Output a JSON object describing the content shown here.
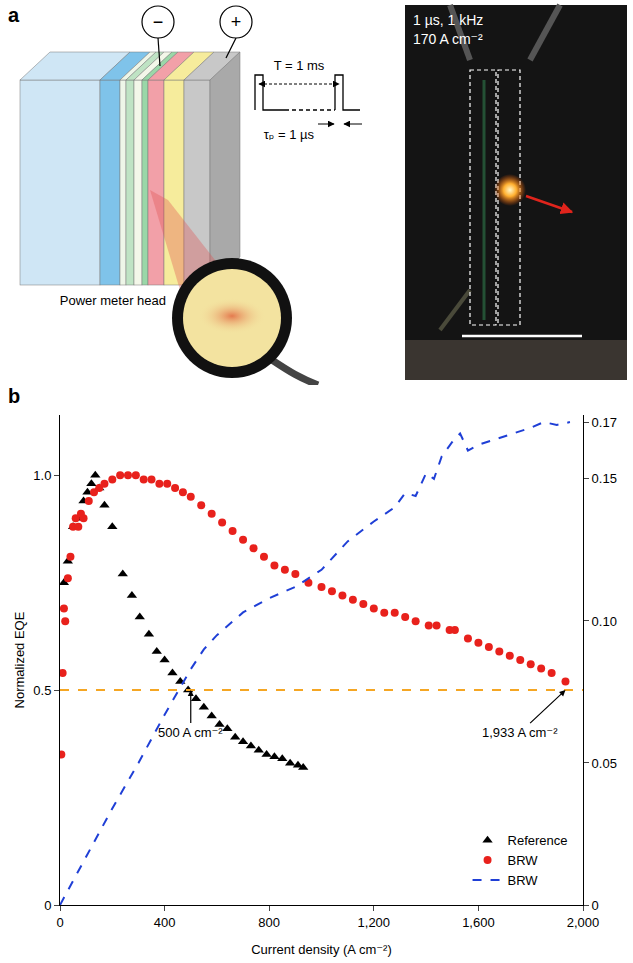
{
  "panel_a": {
    "label": "a",
    "electrodes": [
      "−",
      "+"
    ],
    "pulse": {
      "period": "T = 1 ms",
      "width": "τₚ = 1 µs"
    },
    "detector": "Power meter head",
    "photo": {
      "lines": [
        "1 µs, 1 kHz",
        "170 A cm⁻²"
      ]
    }
  },
  "chart_data": {
    "label": "b",
    "type": "scatter",
    "x_label": "Current density (A cm⁻²)",
    "y_label": "Normalized EQE",
    "xlim": [
      0,
      2000
    ],
    "xticks": [
      0,
      400,
      800,
      {
        "value": 1200,
        "label": "1,200"
      },
      {
        "value": 1600,
        "label": "1,600"
      },
      {
        "value": 2000,
        "label": "2,000"
      }
    ],
    "ylim": [
      0,
      1.14
    ],
    "yticks": [
      0,
      0.5,
      {
        "value": 1,
        "label": "1.0"
      }
    ],
    "y2lim": [
      0,
      0.1725
    ],
    "y2ticks": [
      0,
      0.05,
      {
        "value": 0.1,
        "label": "0.10"
      },
      0.15,
      0.17
    ],
    "grid": false,
    "legend": "lower right",
    "threshold": {
      "value": 0.5,
      "color": "#f5a623",
      "line_style": "dash"
    },
    "annotations": [
      {
        "text": "500 A cm⁻²",
        "x": 500,
        "y": 0.5
      },
      {
        "text": "1,933 A cm⁻²",
        "x": 1933,
        "y": 0.5
      }
    ],
    "series": [
      {
        "name": "Reference",
        "type": "scatter",
        "marker": "triangle",
        "color": "#000000",
        "x": [
          15,
          30,
          50,
          70,
          90,
          105,
          120,
          135,
          150,
          170,
          200,
          240,
          275,
          305,
          340,
          370,
          400,
          430,
          460,
          490,
          520,
          550,
          580,
          610,
          640,
          670,
          700,
          730,
          760,
          790,
          820,
          850,
          880,
          910,
          930
        ],
        "values": [
          0.75,
          0.8,
          0.88,
          0.9,
          0.94,
          0.96,
          0.98,
          1.0,
          0.97,
          0.93,
          0.88,
          0.77,
          0.72,
          0.67,
          0.63,
          0.59,
          0.57,
          0.54,
          0.52,
          0.5,
          0.48,
          0.46,
          0.44,
          0.42,
          0.41,
          0.39,
          0.38,
          0.37,
          0.36,
          0.35,
          0.345,
          0.34,
          0.33,
          0.325,
          0.32
        ]
      },
      {
        "name": "BRW",
        "type": "scatter",
        "marker": "circle",
        "color": "#e8211c",
        "x": [
          5,
          10,
          15,
          20,
          30,
          40,
          50,
          60,
          70,
          80,
          90,
          110,
          130,
          150,
          170,
          200,
          230,
          260,
          290,
          320,
          350,
          380,
          410,
          440,
          470,
          500,
          540,
          580,
          620,
          660,
          700,
          740,
          780,
          820,
          860,
          900,
          950,
          1000,
          1040,
          1080,
          1120,
          1160,
          1200,
          1240,
          1280,
          1320,
          1360,
          1410,
          1440,
          1490,
          1510,
          1560,
          1600,
          1640,
          1680,
          1720,
          1760,
          1800,
          1840,
          1880,
          1933
        ],
        "values": [
          0.35,
          0.54,
          0.69,
          0.66,
          0.76,
          0.81,
          0.88,
          0.9,
          0.88,
          0.91,
          0.9,
          0.94,
          0.96,
          0.97,
          0.98,
          0.99,
          1.0,
          1.0,
          1.0,
          0.99,
          0.99,
          0.98,
          0.98,
          0.97,
          0.96,
          0.95,
          0.93,
          0.91,
          0.89,
          0.87,
          0.85,
          0.83,
          0.81,
          0.79,
          0.78,
          0.77,
          0.75,
          0.74,
          0.73,
          0.72,
          0.71,
          0.7,
          0.69,
          0.68,
          0.68,
          0.67,
          0.66,
          0.65,
          0.65,
          0.64,
          0.64,
          0.62,
          0.61,
          0.6,
          0.59,
          0.58,
          0.57,
          0.56,
          0.55,
          0.54,
          0.52
        ]
      },
      {
        "name": "BRW",
        "type": "line",
        "line_style": "dash",
        "axis": "y2",
        "color": "#1f3fd6",
        "x": [
          0,
          100,
          200,
          300,
          400,
          500,
          550,
          600,
          700,
          800,
          900,
          1000,
          1100,
          1200,
          1280,
          1320,
          1360,
          1400,
          1430,
          1460,
          1500,
          1530,
          1560,
          1600,
          1700,
          1800,
          1850,
          1900,
          1950
        ],
        "values": [
          0,
          0.017,
          0.034,
          0.05,
          0.067,
          0.083,
          0.09,
          0.095,
          0.103,
          0.108,
          0.112,
          0.118,
          0.128,
          0.135,
          0.14,
          0.145,
          0.144,
          0.152,
          0.15,
          0.158,
          0.163,
          0.166,
          0.16,
          0.162,
          0.165,
          0.168,
          0.17,
          0.169,
          0.17
        ]
      }
    ]
  }
}
